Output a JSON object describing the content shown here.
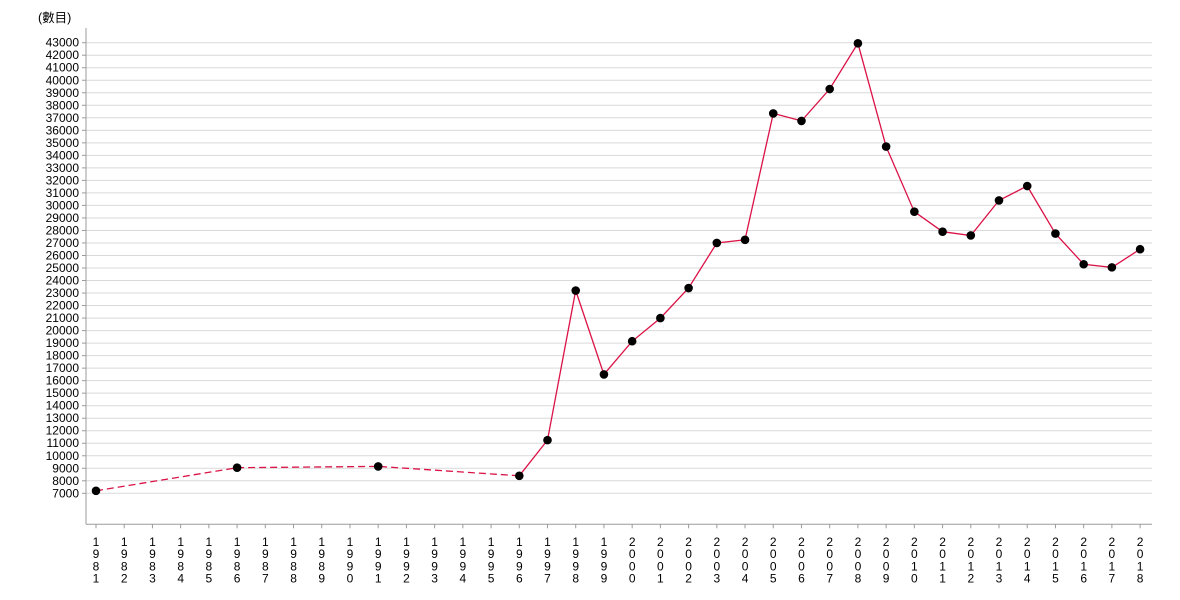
{
  "unit_label": "(數目)",
  "chart_data": {
    "type": "line",
    "title": "(數目)",
    "xlabel": "",
    "ylabel": "數目",
    "legend_position": "none",
    "grid": true,
    "y_min": 7000,
    "y_max": 43000,
    "y_step": 1000,
    "x_categories": [
      "1981",
      "1982",
      "1983",
      "1984",
      "1985",
      "1986",
      "1987",
      "1988",
      "1989",
      "1990",
      "1991",
      "1992",
      "1993",
      "1994",
      "1995",
      "1996",
      "1997",
      "1998",
      "1999",
      "2000",
      "2001",
      "2002",
      "2003",
      "2004",
      "2005",
      "2006",
      "2007",
      "2008",
      "2009",
      "2010",
      "2011",
      "2012",
      "2013",
      "2014",
      "2015",
      "2016",
      "2017",
      "2018"
    ],
    "series": [
      {
        "name": "數目",
        "dashed_until_year": "1996",
        "points": [
          [
            "1981",
            7200
          ],
          [
            "1986",
            9050
          ],
          [
            "1991",
            9150
          ],
          [
            "1996",
            8400
          ],
          [
            "1997",
            11250
          ],
          [
            "1998",
            23200
          ],
          [
            "1999",
            16500
          ],
          [
            "2000",
            19150
          ],
          [
            "2001",
            21000
          ],
          [
            "2002",
            23400
          ],
          [
            "2003",
            27000
          ],
          [
            "2004",
            27250
          ],
          [
            "2005",
            37350
          ],
          [
            "2006",
            36750
          ],
          [
            "2007",
            39300
          ],
          [
            "2008",
            42950
          ],
          [
            "2009",
            34700
          ],
          [
            "2010",
            29500
          ],
          [
            "2011",
            27900
          ],
          [
            "2012",
            27600
          ],
          [
            "2013",
            30400
          ],
          [
            "2014",
            31550
          ],
          [
            "2015",
            27750
          ],
          [
            "2016",
            25300
          ],
          [
            "2017",
            25050
          ],
          [
            "2018",
            26500
          ]
        ]
      }
    ],
    "colors": {
      "line": "#db1347",
      "marker": "#000000",
      "grid": "#d9d9d9",
      "axis": "#9b9b9b",
      "text": "#000000"
    }
  }
}
